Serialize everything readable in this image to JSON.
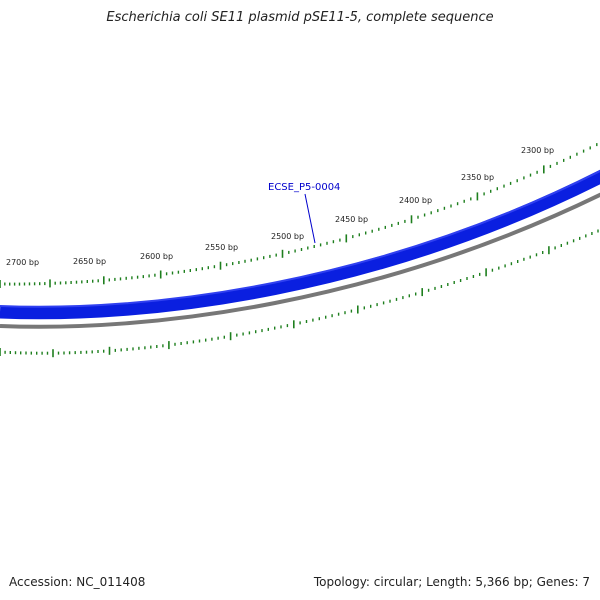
{
  "title": "Escherichia coli SE11 plasmid pSE11-5, complete sequence",
  "accession": "Accession: NC_011408",
  "summary": "Topology: circular; Length: 5,366 bp; Genes: 7",
  "colors": {
    "gene_track": "#0a1fe0",
    "gene_track_edge": "#5b6cf0",
    "backbone": "#777777",
    "ticks": "#1e7f1e",
    "feature_label": "#0000cc"
  },
  "feature": {
    "label": "ECSE_P5-0004"
  },
  "ticks": [
    {
      "label": "2300 bp"
    },
    {
      "label": "2350 bp"
    },
    {
      "label": "2400 bp"
    },
    {
      "label": "2450 bp"
    },
    {
      "label": "2500 bp"
    },
    {
      "label": "2550 bp"
    },
    {
      "label": "2600 bp"
    },
    {
      "label": "2650 bp"
    },
    {
      "label": "2700 bp"
    }
  ]
}
